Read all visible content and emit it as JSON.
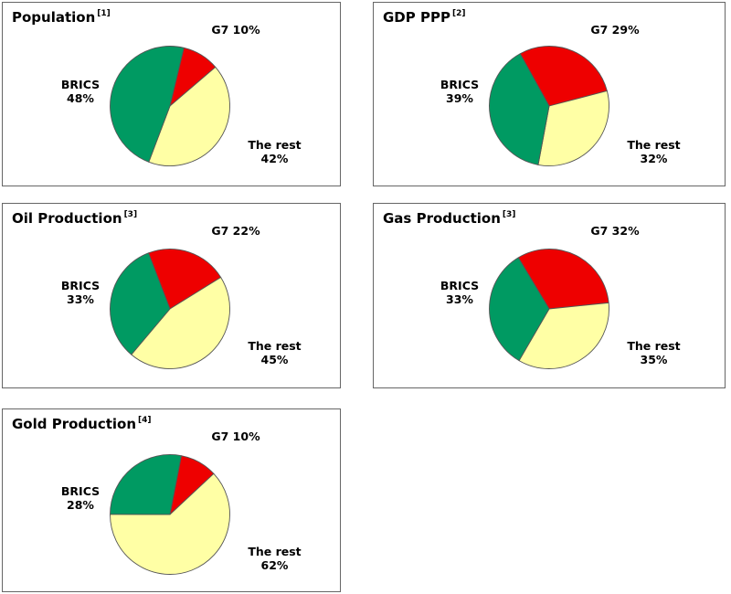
{
  "colors": {
    "brics": "#009A62",
    "g7": "#EE0000",
    "rest": "#FFFFA5",
    "panel_border": "#666666",
    "slice_stroke": "#555555",
    "text": "#000000",
    "background": "#FFFFFF"
  },
  "chart_data": [
    {
      "type": "pie",
      "title": "Population",
      "footnote": "[1]",
      "start_angle_deg": 13.5,
      "slices": [
        {
          "name": "G7",
          "pct": 10,
          "color": "#EE0000",
          "label": "G7 10%"
        },
        {
          "name": "The rest",
          "pct": 42,
          "color": "#FFFFA5",
          "label_line1": "The rest",
          "label_line2": "42%"
        },
        {
          "name": "BRICS",
          "pct": 48,
          "color": "#009A62",
          "label_line1": "BRICS",
          "label_line2": "48%"
        }
      ]
    },
    {
      "type": "pie",
      "title": "GDP PPP",
      "footnote": "[2]",
      "start_angle_deg": -29,
      "slices": [
        {
          "name": "G7",
          "pct": 29,
          "color": "#EE0000",
          "label": "G7 29%"
        },
        {
          "name": "The rest",
          "pct": 32,
          "color": "#FFFFA5",
          "label_line1": "The rest",
          "label_line2": "32%"
        },
        {
          "name": "BRICS",
          "pct": 39,
          "color": "#009A62",
          "label_line1": "BRICS",
          "label_line2": "39%"
        }
      ]
    },
    {
      "type": "pie",
      "title": "Oil Production",
      "footnote": "[3]",
      "start_angle_deg": -21,
      "slices": [
        {
          "name": "G7",
          "pct": 22,
          "color": "#EE0000",
          "label": "G7 22%"
        },
        {
          "name": "The rest",
          "pct": 45,
          "color": "#FFFFA5",
          "label_line1": "The rest",
          "label_line2": "45%"
        },
        {
          "name": "BRICS",
          "pct": 33,
          "color": "#009A62",
          "label_line1": "BRICS",
          "label_line2": "33%"
        }
      ]
    },
    {
      "type": "pie",
      "title": "Gas Production",
      "footnote": "[3]",
      "start_angle_deg": -31,
      "slices": [
        {
          "name": "G7",
          "pct": 32,
          "color": "#EE0000",
          "label": "G7 32%"
        },
        {
          "name": "The rest",
          "pct": 35,
          "color": "#FFFFA5",
          "label_line1": "The rest",
          "label_line2": "35%"
        },
        {
          "name": "BRICS",
          "pct": 33,
          "color": "#009A62",
          "label_line1": "BRICS",
          "label_line2": "33%"
        }
      ]
    },
    {
      "type": "pie",
      "title": "Gold Production",
      "footnote": "[4]",
      "start_angle_deg": 11,
      "slices": [
        {
          "name": "G7",
          "pct": 10,
          "color": "#EE0000",
          "label": "G7 10%"
        },
        {
          "name": "The rest",
          "pct": 62,
          "color": "#FFFFA5",
          "label_line1": "The rest",
          "label_line2": "62%"
        },
        {
          "name": "BRICS",
          "pct": 28,
          "color": "#009A62",
          "label_line1": "BRICS",
          "label_line2": "28%"
        }
      ]
    }
  ]
}
